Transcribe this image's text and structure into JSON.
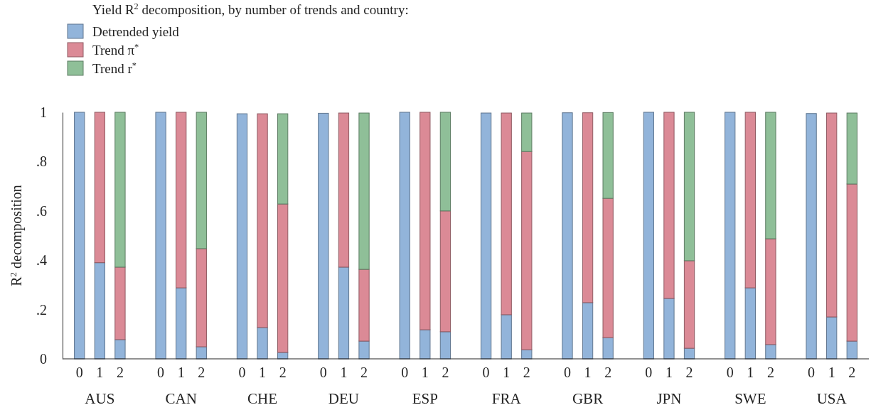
{
  "chart_data": {
    "type": "bar",
    "stacked": true,
    "title": "Yield R$^{2}$ decomposition, by number of trends and country:",
    "ylabel": "R$^{2}$ decomposition",
    "categories": [
      "0",
      "1",
      "2",
      null,
      "0",
      "1",
      "2",
      null,
      "0",
      "1",
      "2",
      null,
      "0",
      "1",
      "2",
      null,
      "0",
      "1",
      "2",
      null,
      "0",
      "1",
      "2",
      null,
      "0",
      "1",
      "2",
      null,
      "0",
      "1",
      "2",
      null,
      "0",
      "1",
      "2",
      null,
      "0",
      "1",
      "2"
    ],
    "series": [
      {
        "name": "Detrended yield",
        "color": "#92b4da",
        "values": [
          1.0,
          0.39,
          0.078,
          null,
          1.0,
          0.288,
          0.049,
          null,
          0.994,
          0.127,
          0.026,
          null,
          0.996,
          0.372,
          0.072,
          null,
          1.0,
          0.118,
          0.11,
          null,
          0.997,
          0.179,
          0.037,
          null,
          0.998,
          0.228,
          0.086,
          null,
          1.0,
          0.245,
          0.043,
          null,
          1.0,
          0.288,
          0.058,
          null,
          0.995,
          0.17,
          0.072
        ]
      },
      {
        "name": "Trend π$^{*}$",
        "color": "#db8a96",
        "values": [
          null,
          0.61,
          0.294,
          null,
          null,
          0.712,
          0.398,
          null,
          null,
          0.867,
          0.602,
          null,
          null,
          0.625,
          0.291,
          null,
          null,
          0.882,
          0.49,
          null,
          null,
          0.818,
          0.804,
          null,
          null,
          0.77,
          0.565,
          null,
          null,
          0.755,
          0.355,
          null,
          null,
          0.712,
          0.429,
          null,
          null,
          0.827,
          0.637
        ]
      },
      {
        "name": "Trend r$^{*}$",
        "color": "#8fbf98",
        "values": [
          null,
          null,
          0.628,
          null,
          null,
          null,
          0.553,
          null,
          null,
          null,
          0.366,
          null,
          null,
          null,
          0.634,
          null,
          null,
          null,
          0.4,
          null,
          null,
          null,
          0.156,
          null,
          null,
          null,
          0.348,
          null,
          null,
          null,
          0.602,
          null,
          null,
          null,
          0.513,
          null,
          null,
          null,
          0.288
        ]
      }
    ],
    "ylim": [
      0,
      1
    ],
    "yticks": [
      0,
      {
        "value": 0.2,
        "label": ".2"
      },
      {
        "value": 0.4,
        "label": ".4"
      },
      {
        "value": 0.6,
        "label": ".6"
      },
      {
        "value": 0.8,
        "label": ".8"
      },
      1
    ],
    "legend": "top left",
    "annotations": [
      "AUS",
      "CAN",
      "CHE",
      "DEU",
      "ESP",
      "FRA",
      "GBR",
      "JPN",
      "SWE",
      "USA"
    ]
  }
}
